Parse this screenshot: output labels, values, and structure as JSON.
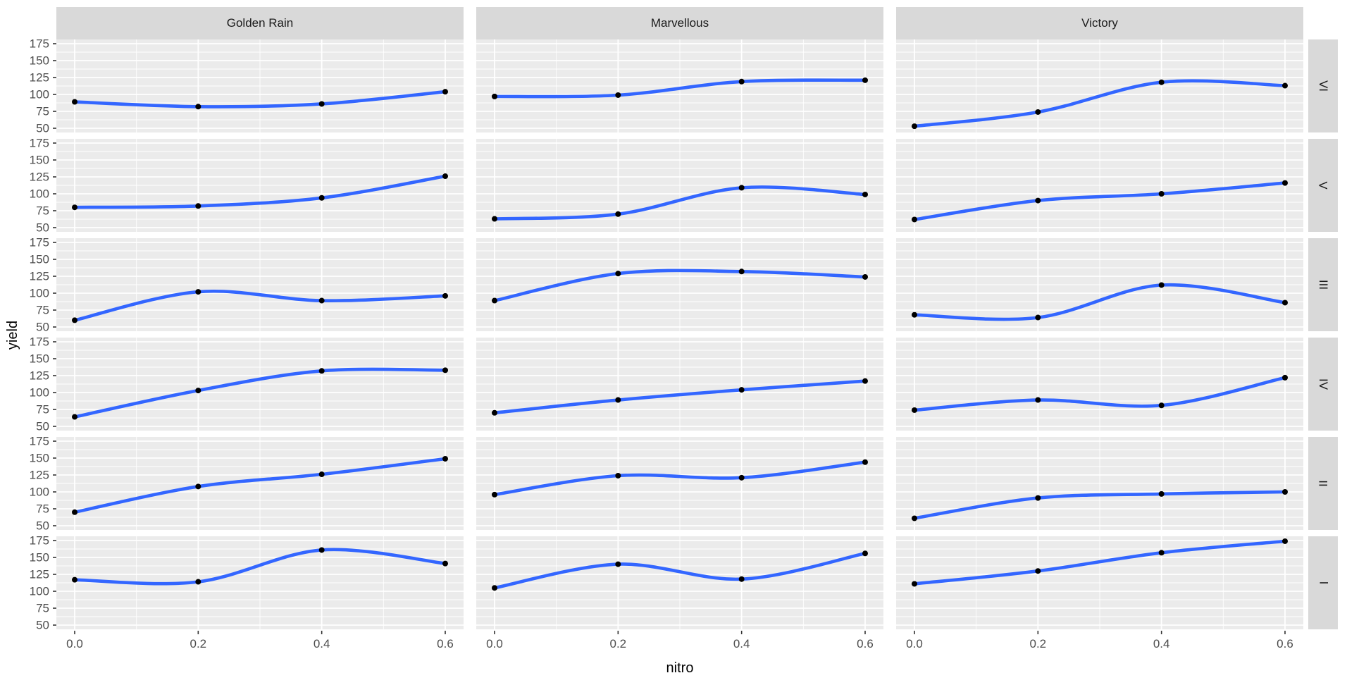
{
  "axes": {
    "x_title": "nitro",
    "y_title": "yield",
    "x_ticks": [
      "0.0",
      "0.2",
      "0.4",
      "0.6"
    ],
    "y_ticks": [
      "175",
      "150",
      "125",
      "100",
      "75",
      "50"
    ]
  },
  "chart_data": {
    "type": "line",
    "description": "Faceted line chart (ggplot style): oat yield vs nitrogen, columns = variety, rows = block",
    "x": [
      0.0,
      0.2,
      0.4,
      0.6
    ],
    "xlabel": "nitro",
    "ylabel": "yield",
    "xlim": [
      -0.03,
      0.63
    ],
    "ylim": [
      50,
      175
    ],
    "y_major_ticks": [
      50,
      75,
      100,
      125,
      150,
      175
    ],
    "y_minor_ticks": [
      62.5,
      87.5,
      112.5,
      137.5,
      162.5
    ],
    "x_major_ticks": [
      0.0,
      0.2,
      0.4,
      0.6
    ],
    "x_minor_ticks": [
      0.1,
      0.3,
      0.5
    ],
    "grid": "on",
    "legend": "none",
    "facet_columns": [
      "Golden Rain",
      "Marvellous",
      "Victory"
    ],
    "facet_rows": [
      "VI",
      "V",
      "III",
      "IV",
      "II",
      "I"
    ],
    "series": [
      [
        [
          89,
          82,
          86,
          104
        ],
        [
          97,
          99,
          119,
          121
        ],
        [
          53,
          74,
          118,
          113
        ]
      ],
      [
        [
          80,
          82,
          94,
          126
        ],
        [
          63,
          70,
          109,
          99
        ],
        [
          62,
          90,
          100,
          116
        ]
      ],
      [
        [
          60,
          102,
          89,
          96
        ],
        [
          89,
          129,
          132,
          124
        ],
        [
          68,
          64,
          112,
          86
        ]
      ],
      [
        [
          64,
          103,
          132,
          133
        ],
        [
          70,
          89,
          104,
          117
        ],
        [
          74,
          89,
          81,
          122
        ]
      ],
      [
        [
          70,
          108,
          126,
          149
        ],
        [
          96,
          124,
          121,
          144
        ],
        [
          61,
          91,
          97,
          100
        ]
      ],
      [
        [
          117,
          114,
          161,
          141
        ],
        [
          105,
          140,
          118,
          156
        ],
        [
          111,
          130,
          157,
          174
        ]
      ]
    ],
    "colors": {
      "line": "#3366FF",
      "point": "#000000",
      "panel_bg": "#EBEBEB",
      "grid_line": "#FFFFFF",
      "strip_bg": "#D9D9D9",
      "strip_text": "#1A1A1A",
      "tick_text": "#4D4D4D",
      "tick_mark": "#333333",
      "axis_title_text": "#000000"
    }
  }
}
